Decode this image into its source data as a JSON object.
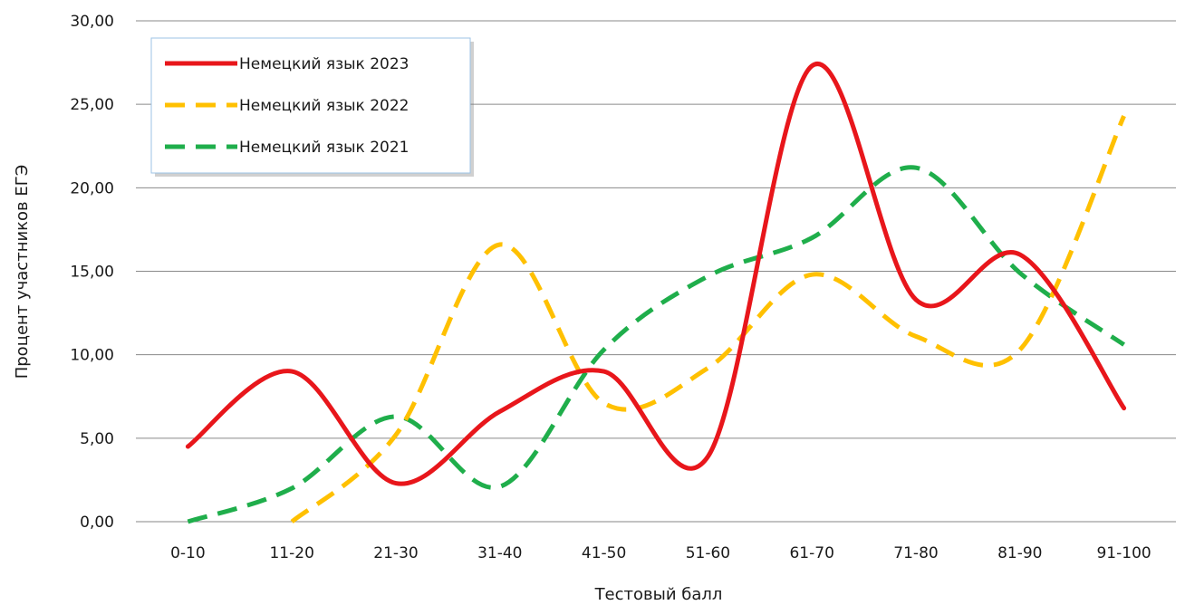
{
  "chart_data": {
    "type": "line",
    "smooth": true,
    "categories": [
      "0-10",
      "11-20",
      "21-30",
      "31-40",
      "41-50",
      "51-60",
      "61-70",
      "71-80",
      "81-90",
      "91-100"
    ],
    "series": [
      {
        "name": "Немецкий язык 2023",
        "color": "#e8161b",
        "dash": "solid",
        "values": [
          4.5,
          9.0,
          2.3,
          6.6,
          9.0,
          3.9,
          27.3,
          13.3,
          16.0,
          6.8
        ]
      },
      {
        "name": "Немецкий язык 2022",
        "color": "#ffc000",
        "dash": "dashed",
        "values": [
          null,
          0.0,
          5.2,
          16.6,
          7.1,
          9.2,
          14.8,
          11.1,
          10.3,
          24.3
        ]
      },
      {
        "name": "Немецкий язык 2021",
        "color": "#1fae4b",
        "dash": "dashed",
        "values": [
          0.0,
          2.0,
          6.3,
          2.1,
          10.3,
          14.7,
          17.0,
          21.2,
          14.9,
          10.6
        ]
      }
    ],
    "y_ticks": [
      "0,00",
      "5,00",
      "10,00",
      "15,00",
      "20,00",
      "25,00",
      "30,00"
    ],
    "ylim": [
      0,
      30
    ],
    "xlabel": "Тестовый балл",
    "ylabel": "Процент участников ЕГЭ",
    "grid": true,
    "legend": "top-left"
  }
}
